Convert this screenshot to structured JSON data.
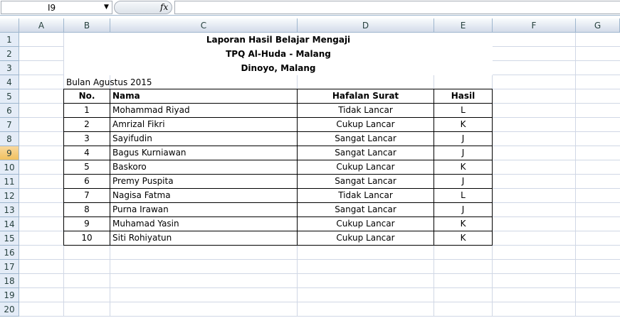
{
  "name_box": "I9",
  "formula_icon": "fx",
  "columns": [
    "A",
    "B",
    "C",
    "D",
    "E",
    "F",
    "G"
  ],
  "rows": [
    "1",
    "2",
    "3",
    "4",
    "5",
    "6",
    "7",
    "8",
    "9",
    "10",
    "11",
    "12",
    "13",
    "14",
    "15",
    "16",
    "17",
    "18",
    "19",
    "20"
  ],
  "selected_row": "9",
  "title1": "Laporan Hasil Belajar Mengaji",
  "title2": "TPQ Al-Huda - Malang",
  "title3": "Dinoyo, Malang",
  "subtitle": "Bulan Agustus 2015",
  "table": {
    "headers": [
      "No.",
      "Nama",
      "Hafalan Surat",
      "Hasil"
    ],
    "rows": [
      [
        "1",
        "Mohammad Riyad",
        "Tidak Lancar",
        "L"
      ],
      [
        "2",
        "Amrizal Fikri",
        "Cukup Lancar",
        "K"
      ],
      [
        "3",
        "Sayifudin",
        "Sangat Lancar",
        "J"
      ],
      [
        "4",
        "Bagus Kurniawan",
        "Sangat Lancar",
        "J"
      ],
      [
        "5",
        "Baskoro",
        "Cukup Lancar",
        "K"
      ],
      [
        "6",
        "Premy Puspita",
        "Sangat Lancar",
        "J"
      ],
      [
        "7",
        "Nagisa Fatma",
        "Tidak Lancar",
        "L"
      ],
      [
        "8",
        "Purna Irawan",
        "Sangat Lancar",
        "J"
      ],
      [
        "9",
        "Muhamad Yasin",
        "Cukup Lancar",
        "K"
      ],
      [
        "10",
        "Siti Rohiyatun",
        "Cukup Lancar",
        "K"
      ]
    ]
  }
}
